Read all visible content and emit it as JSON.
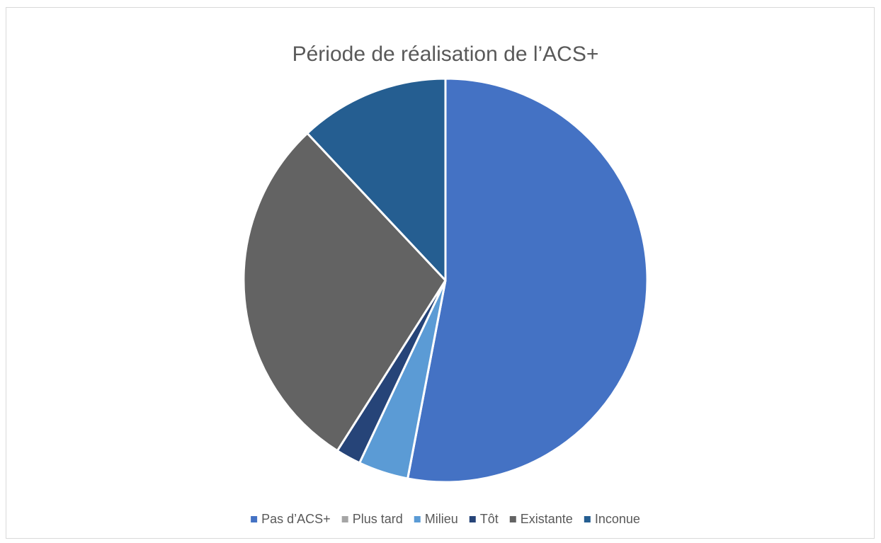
{
  "chart_data": {
    "type": "pie",
    "title": "Période de réalisation de l’ACS+",
    "categories": [
      "Pas d’ACS+",
      "Plus tard",
      "Milieu",
      "Tôt",
      "Existante",
      "Inconue"
    ],
    "values": [
      53,
      0,
      4,
      2,
      29,
      12
    ],
    "colors": [
      "#4472c4",
      "#a5a5a5",
      "#5b9bd5",
      "#264478",
      "#636363",
      "#255e91"
    ],
    "legend": "bottom"
  }
}
